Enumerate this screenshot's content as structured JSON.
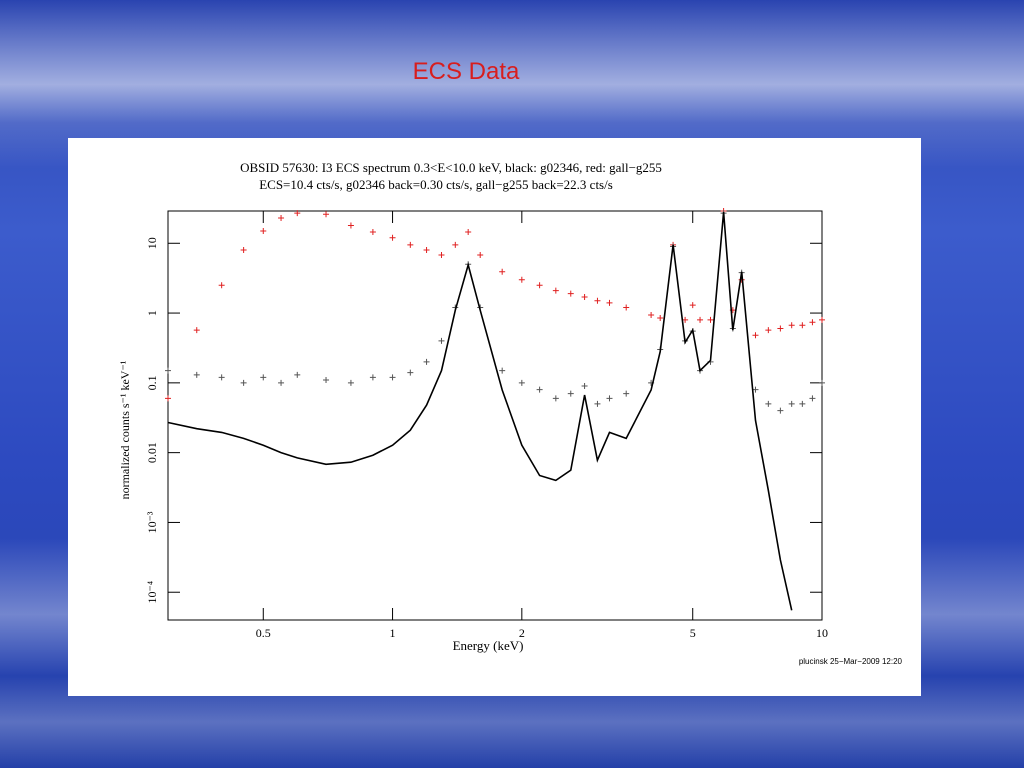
{
  "slide_title": "ECS Data",
  "chart_data": {
    "type": "line",
    "title": "OBSID 57630: I3 ECS spectrum 0.3<E<10.0 keV, black: g02346, red: gall−g255",
    "subtitle": "ECS=10.4 cts/s, g02346 back=0.30 cts/s, gall−g255 back=22.3 cts/s",
    "x_label": "Energy (keV)",
    "y_label": "normalized counts s⁻¹ keV⁻¹",
    "annotation": "plucinsk 25−Mar−2009 12:20",
    "xscale": "log",
    "yscale": "log",
    "xlim": [
      0.3,
      10
    ],
    "xticks": [
      0.5,
      1,
      2,
      5,
      10
    ],
    "ylim": [
      4e-05,
      29
    ],
    "yticks": [
      {
        "value": 0.0001,
        "label": "10⁻⁴"
      },
      {
        "value": 0.001,
        "label": "10⁻³"
      },
      0.01,
      0.1,
      1,
      10
    ],
    "x": [
      0.3,
      0.35,
      0.4,
      0.45,
      0.5,
      0.55,
      0.6,
      0.7,
      0.8,
      0.9,
      1.0,
      1.1,
      1.2,
      1.3,
      1.4,
      1.5,
      1.6,
      1.8,
      2.0,
      2.2,
      2.4,
      2.6,
      2.8,
      3.0,
      3.2,
      3.5,
      4.0,
      4.2,
      4.5,
      4.8,
      5.0,
      5.2,
      5.5,
      5.9,
      6.2,
      6.5,
      7.0,
      7.5,
      8.0,
      8.5,
      9.0,
      9.5,
      10
    ],
    "series": [
      {
        "color": "#e02020",
        "style": "points",
        "values": [
          0.06,
          0.57,
          2.5,
          8,
          15,
          23,
          27,
          26,
          18,
          14.5,
          12,
          9.5,
          8,
          6.8,
          9.5,
          14.5,
          6.8,
          3.9,
          3,
          2.5,
          2.1,
          1.9,
          1.7,
          1.5,
          1.4,
          1.2,
          0.94,
          0.85,
          9.5,
          0.8,
          1.3,
          0.8,
          0.8,
          29,
          1.1,
          3,
          0.48,
          0.57,
          0.6,
          0.67,
          0.67,
          0.74,
          0.8
        ]
      },
      {
        "color": "#555555",
        "style": "points",
        "values": [
          0.15,
          0.13,
          0.12,
          0.1,
          0.12,
          0.1,
          0.13,
          0.11,
          0.1,
          0.12,
          0.12,
          0.14,
          0.2,
          0.4,
          1.2,
          5,
          1.2,
          0.15,
          0.1,
          0.08,
          0.06,
          0.07,
          0.09,
          0.05,
          0.06,
          0.07,
          0.1,
          0.3,
          9,
          0.4,
          0.55,
          0.15,
          0.2,
          27,
          0.6,
          3.8,
          0.08,
          0.05,
          0.04,
          0.05,
          0.05,
          0.06,
          0.1
        ]
      },
      {
        "color": "#000000",
        "style": "line",
        "values": [
          0.027,
          0.022,
          0.0195,
          0.016,
          0.0128,
          0.01,
          0.0084,
          0.0068,
          0.0073,
          0.0092,
          0.0128,
          0.021,
          0.048,
          0.15,
          1.1,
          4.9,
          1.1,
          0.079,
          0.0128,
          0.0047,
          0.004,
          0.0056,
          0.067,
          0.0078,
          0.0195,
          0.016,
          0.079,
          0.28,
          9.5,
          0.38,
          0.57,
          0.15,
          0.21,
          28,
          0.57,
          3.9,
          0.029,
          0.0029,
          0.00029,
          5.5e-05,
          null,
          null,
          null
        ]
      }
    ]
  }
}
